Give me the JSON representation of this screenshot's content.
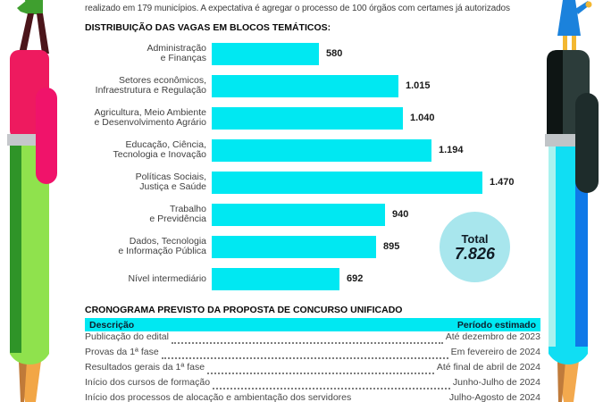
{
  "intro_text": "realizado em 179 municípios. A expectativa é agregar o processo de 100 órgãos com certames já autorizados",
  "chart_data": {
    "type": "bar",
    "orientation": "horizontal",
    "title": "DISTRIBUIÇÃO DAS VAGAS EM BLOCOS TEMÁTICOS:",
    "categories": [
      "Administração\ne Finanças",
      "Setores econômicos,\nInfraestrutura e Regulação",
      "Agricultura, Meio Ambiente\ne Desenvolvimento Agrário",
      "Educação, Ciência,\nTecnologia e Inovação",
      "Políticas Sociais,\nJustiça e Saúde",
      "Trabalho\ne Previdência",
      "Dados, Tecnologia\ne Informação Pública",
      "Nível intermediário"
    ],
    "values": [
      580,
      1015,
      1040,
      1194,
      1470,
      940,
      895,
      692
    ],
    "value_labels": [
      "580",
      "1.015",
      "1.040",
      "1.194",
      "1.470",
      "940",
      "895",
      "692"
    ],
    "xlim": [
      0,
      1470
    ],
    "grid": false,
    "legend": "none",
    "bar_color": "#00E8F2",
    "total": {
      "label": "Total",
      "value": "7.826",
      "circle_color": "#A8E6ED"
    }
  },
  "schedule_table": {
    "title": "CRONOGRAMA PREVISTO DA PROPOSTA DE CONCURSO UNIFICADO",
    "header": {
      "description": "Descrição",
      "period": "Período estimado",
      "bg_color": "#00E8F2"
    },
    "rows": [
      {
        "description": "Publicação do edital",
        "period": "Até dezembro de 2023"
      },
      {
        "description": "Provas da 1ª fase",
        "period": "Em fevereiro de 2024"
      },
      {
        "description": "Resultados gerais da 1ª fase",
        "period": "Até final de abril de 2024"
      },
      {
        "description": "Início dos cursos de formação",
        "period": "Junho-Julho de 2024"
      },
      {
        "description": "Início dos processos de alocação e ambientação dos servidores",
        "period": "Julho-Agosto de 2024"
      }
    ]
  },
  "palette": {
    "accent_cyan": "#00E8F2",
    "total_circle": "#A8E6ED",
    "left_pencil_cap_pink": "#EE1A5F",
    "left_pencil_body_green": "#8FE24D",
    "left_pencil_stripe_green": "#2F9428",
    "right_pencil_cap_charcoal": "#2C3C3A",
    "right_pencil_body_cyan": "#10DEF3",
    "right_pencil_stripe_blue": "#0F79E8",
    "wood_tip_orange": "#F2A646",
    "band_silver": "#C5C7CB"
  }
}
